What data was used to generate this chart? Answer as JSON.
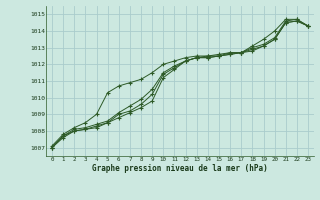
{
  "bg_color": "#cce8e0",
  "grid_color": "#aacccc",
  "line_color": "#2d5a27",
  "marker_color": "#2d5a27",
  "xlabel": "Graphe pression niveau de la mer (hPa)",
  "xlim": [
    -0.5,
    23.5
  ],
  "ylim": [
    1006.5,
    1015.5
  ],
  "xticks": [
    0,
    1,
    2,
    3,
    4,
    5,
    6,
    7,
    8,
    9,
    10,
    11,
    12,
    13,
    14,
    15,
    16,
    17,
    18,
    19,
    20,
    21,
    22,
    23
  ],
  "yticks": [
    1007,
    1008,
    1009,
    1010,
    1011,
    1012,
    1013,
    1014,
    1015
  ],
  "series": [
    [
      1007.0,
      1007.6,
      1008.0,
      1008.1,
      1008.2,
      1008.5,
      1008.8,
      1009.1,
      1009.4,
      1009.8,
      1011.2,
      1011.7,
      1012.2,
      1012.4,
      1012.4,
      1012.5,
      1012.6,
      1012.7,
      1012.8,
      1013.1,
      1013.5,
      1014.5,
      1014.6,
      1014.3
    ],
    [
      1007.0,
      1007.7,
      1008.0,
      1008.1,
      1008.3,
      1008.5,
      1009.0,
      1009.2,
      1009.6,
      1010.2,
      1011.4,
      1011.8,
      1012.2,
      1012.4,
      1012.4,
      1012.5,
      1012.6,
      1012.7,
      1012.9,
      1013.1,
      1013.5,
      1014.5,
      1014.6,
      1014.3
    ],
    [
      1007.0,
      1007.7,
      1008.1,
      1008.2,
      1008.4,
      1008.6,
      1009.1,
      1009.5,
      1009.9,
      1010.5,
      1011.5,
      1011.9,
      1012.2,
      1012.4,
      1012.5,
      1012.5,
      1012.7,
      1012.7,
      1013.0,
      1013.2,
      1013.6,
      1014.6,
      1014.7,
      1014.3
    ],
    [
      1007.1,
      1007.8,
      1008.2,
      1008.5,
      1009.0,
      1010.3,
      1010.7,
      1010.9,
      1011.1,
      1011.5,
      1012.0,
      1012.2,
      1012.4,
      1012.5,
      1012.5,
      1012.6,
      1012.7,
      1012.7,
      1013.1,
      1013.5,
      1014.0,
      1014.7,
      1014.7,
      1014.3
    ]
  ]
}
